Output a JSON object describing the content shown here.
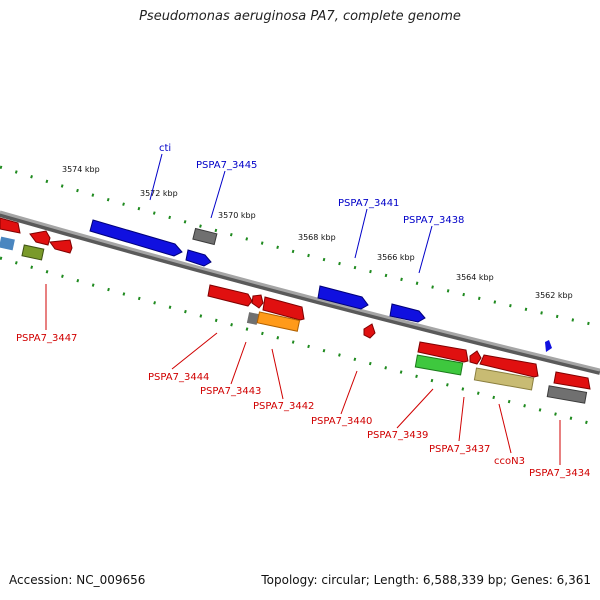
{
  "title": "Pseudomonas aeruginosa PA7, complete genome",
  "footer": {
    "accession": "Accession: NC_009656",
    "topology": "Topology: circular; Length: 6,588,339 bp; Genes: 6,361"
  },
  "colors": {
    "forward_label": "#0000c8",
    "reverse_label": "#d00000",
    "backbone": "#8c8c8c",
    "ruler_dots": "#1f8a1f"
  },
  "ruler_ticks": [
    "3574 kbp",
    "3572 kbp",
    "3570 kbp",
    "3568 kbp",
    "3566 kbp",
    "3564 kbp",
    "3562 kbp"
  ],
  "forward_genes": [
    "cti",
    "PSPA7_3445",
    "PSPA7_3441",
    "PSPA7_3438"
  ],
  "reverse_genes": [
    "PSPA7_3447",
    "PSPA7_3444",
    "PSPA7_3443",
    "PSPA7_3442",
    "PSPA7_3440",
    "PSPA7_3439",
    "PSPA7_3437",
    "ccoN3",
    "PSPA7_3434"
  ]
}
